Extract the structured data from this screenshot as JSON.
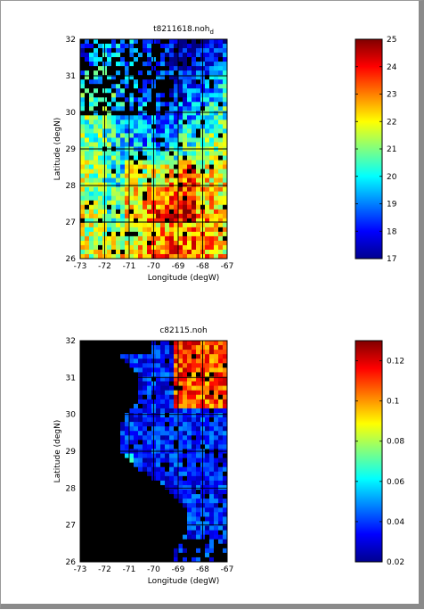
{
  "chart_data": [
    {
      "type": "heatmap",
      "title": "t8211618.noh",
      "title_subscript": "d",
      "xlabel": "Longitude (degW)",
      "ylabel": "Latitude (degN)",
      "xlim": [
        -73,
        -67
      ],
      "ylim": [
        26,
        32
      ],
      "xticks": [
        "-73",
        "-72",
        "-71",
        "-70",
        "-69",
        "-68",
        "-67"
      ],
      "yticks": [
        "26",
        "27",
        "28",
        "29",
        "30",
        "31",
        "32"
      ],
      "grid": true,
      "colormap": "jet",
      "colorbar": {
        "range": [
          17,
          25
        ],
        "ticks": [
          "17",
          "18",
          "19",
          "20",
          "21",
          "22",
          "23",
          "24",
          "25"
        ]
      }
    },
    {
      "type": "heatmap",
      "title": "c82115.noh",
      "xlabel": "Longitude (degW)",
      "ylabel": "Latitude (degN)",
      "xlim": [
        -73,
        -67
      ],
      "ylim": [
        26,
        32
      ],
      "xticks": [
        "-73",
        "-72",
        "-71",
        "-70",
        "-69",
        "-68",
        "-67"
      ],
      "yticks": [
        "26",
        "27",
        "28",
        "29",
        "30",
        "31",
        "32"
      ],
      "grid": true,
      "colormap": "jet",
      "colorbar": {
        "range": [
          0.02,
          0.13
        ],
        "ticks": [
          "0.02",
          "0.04",
          "0.06",
          "0.08",
          "0.1",
          "0.12"
        ]
      }
    }
  ]
}
